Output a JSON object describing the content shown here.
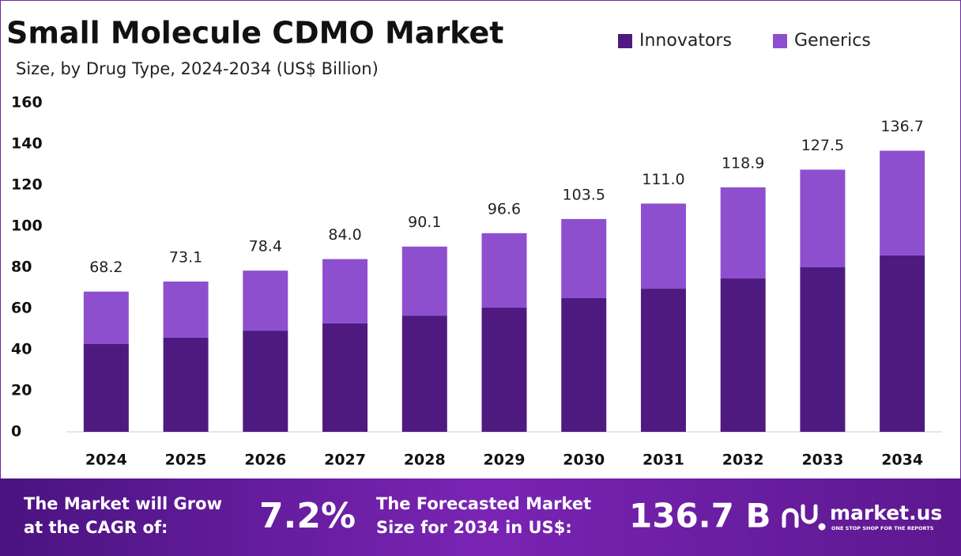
{
  "chart_data": {
    "type": "stacked-bar",
    "title": "Small Molecule CDMO Market",
    "subtitle": "Size, by Drug Type, 2024-2034 (US$ Billion)",
    "categories": [
      "2024",
      "2025",
      "2026",
      "2027",
      "2028",
      "2029",
      "2030",
      "2031",
      "2032",
      "2033",
      "2034"
    ],
    "series": [
      {
        "name": "Innovators",
        "color": "#4e1a80",
        "values": [
          42.7,
          45.8,
          49.2,
          52.7,
          56.5,
          60.4,
          65.0,
          69.6,
          74.6,
          80.0,
          85.8
        ]
      },
      {
        "name": "Generics",
        "color": "#8e4fcf",
        "values": [
          25.5,
          27.3,
          29.2,
          31.3,
          33.6,
          36.2,
          38.5,
          41.4,
          44.3,
          47.5,
          50.9
        ]
      }
    ],
    "totals": [
      68.2,
      73.1,
      78.4,
      84.0,
      90.1,
      96.6,
      103.5,
      111.0,
      118.9,
      127.5,
      136.7
    ],
    "total_labels": [
      "68.2",
      "73.1",
      "78.4",
      "84.0",
      "90.1",
      "96.6",
      "103.5",
      "111.0",
      "118.9",
      "127.5",
      "136.7"
    ],
    "ylim": [
      0,
      160
    ],
    "yticks": [
      0,
      20,
      40,
      60,
      80,
      100,
      120,
      140,
      160
    ],
    "grid": false,
    "legend": "top-right"
  },
  "footer": {
    "cagr_text": [
      "The Market will Grow",
      "at the CAGR of:"
    ],
    "cagr_value": "7.2%",
    "forecast_text": [
      "The Forecasted Market",
      "Size for 2034 in US$:"
    ],
    "forecast_value": "136.7 B",
    "brand": "market.us",
    "tagline": "ONE STOP SHOP FOR THE REPORTS"
  }
}
